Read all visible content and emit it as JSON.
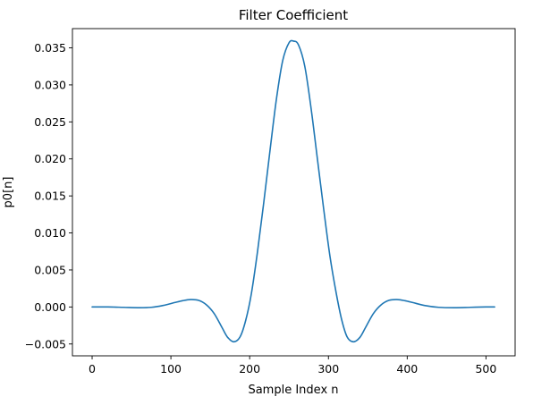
{
  "chart_data": {
    "type": "line",
    "title": "Filter Coefficient",
    "xlabel": "Sample Index n",
    "ylabel": "p0[n]",
    "xlim": [
      -25,
      537
    ],
    "ylim": [
      -0.0066,
      0.0376
    ],
    "xticks": [
      0,
      100,
      200,
      300,
      400,
      500
    ],
    "xtick_labels": [
      "0",
      "100",
      "200",
      "300",
      "400",
      "500"
    ],
    "yticks": [
      -0.005,
      0.0,
      0.005,
      0.01,
      0.015,
      0.02,
      0.025,
      0.03,
      0.035
    ],
    "ytick_labels": [
      "−0.005",
      "0.000",
      "0.005",
      "0.010",
      "0.015",
      "0.020",
      "0.025",
      "0.030",
      "0.035"
    ],
    "grid": false,
    "line_color": "#1f77b4",
    "series": [
      {
        "x": [
          0,
          20,
          40,
          60,
          75,
          90,
          105,
          115,
          125,
          135,
          145,
          155,
          165,
          172,
          180,
          188,
          195,
          202,
          210,
          218,
          226,
          234,
          242,
          250,
          256,
          262,
          270,
          278,
          286,
          294,
          302,
          310,
          317,
          324,
          332,
          340,
          347,
          357,
          367,
          377,
          387,
          397,
          407,
          422,
          440,
          460,
          480,
          500,
          511
        ],
        "y": [
          0.0,
          0.0,
          -5e-05,
          -0.0001,
          -5e-05,
          0.0002,
          0.0006,
          0.00085,
          0.001,
          0.0009,
          0.0003,
          -0.0009,
          -0.0028,
          -0.0041,
          -0.0047,
          -0.004,
          -0.0018,
          0.0017,
          0.0075,
          0.0142,
          0.0213,
          0.0281,
          0.0333,
          0.0357,
          0.0359,
          0.0354,
          0.0325,
          0.0268,
          0.02,
          0.0132,
          0.0068,
          0.0018,
          -0.0018,
          -0.0041,
          -0.0047,
          -0.0041,
          -0.0028,
          -0.0009,
          0.0003,
          0.0009,
          0.001,
          0.00085,
          0.0006,
          0.0002,
          -5e-05,
          -0.0001,
          -5e-05,
          0.0,
          0.0
        ]
      }
    ]
  }
}
